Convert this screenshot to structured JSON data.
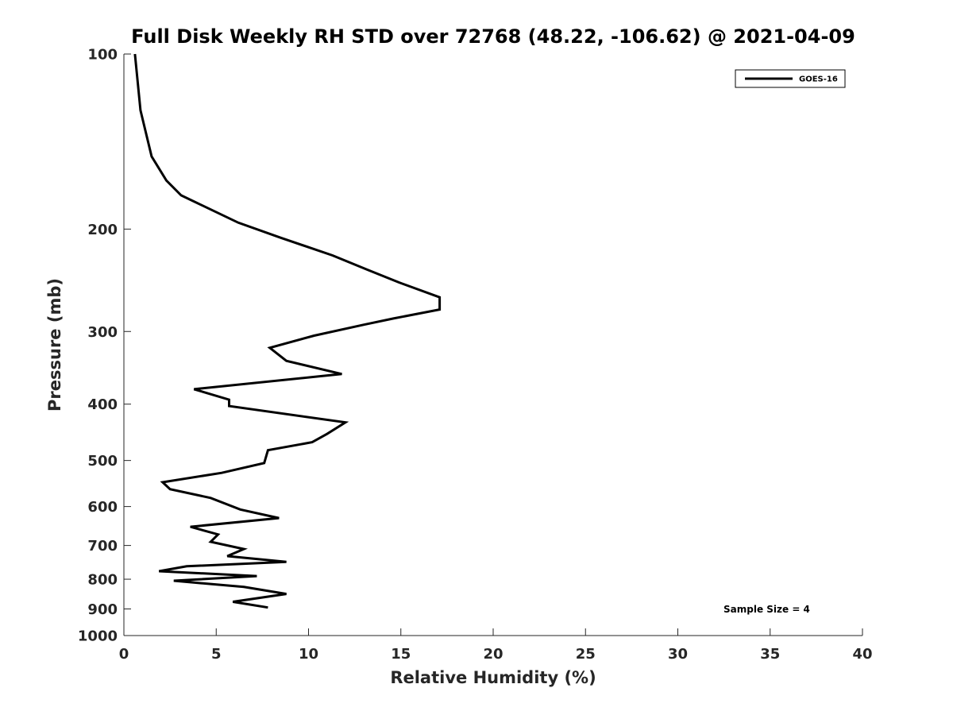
{
  "chart_data": {
    "type": "line",
    "title": "Full Disk Weekly RH STD over 72768 (48.22, -106.62) @ 2021-04-09",
    "xlabel": "Relative Humidity (%)",
    "ylabel": "Pressure (mb)",
    "xlim": [
      0,
      40
    ],
    "ylim": [
      100,
      1000
    ],
    "y_scale": "log",
    "y_reversed": true,
    "grid": false,
    "legend_position": "top-right",
    "x_ticks": [
      "0",
      "5",
      "10",
      "15",
      "20",
      "25",
      "30",
      "35",
      "40"
    ],
    "y_ticks": [
      "100",
      "200",
      "300",
      "400",
      "500",
      "600",
      "700",
      "800",
      "900",
      "1000"
    ],
    "series": [
      {
        "name": "GOES-16",
        "color": "#000000",
        "points": [
          [
            0.6,
            100
          ],
          [
            0.9,
            125
          ],
          [
            1.5,
            150
          ],
          [
            2.3,
            165
          ],
          [
            3.1,
            175
          ],
          [
            6.2,
            195
          ],
          [
            8.5,
            207
          ],
          [
            11.3,
            222
          ],
          [
            13.2,
            235
          ],
          [
            14.9,
            247
          ],
          [
            17.1,
            262
          ],
          [
            17.1,
            275
          ],
          [
            14.6,
            285
          ],
          [
            13.0,
            292
          ],
          [
            10.3,
            305
          ],
          [
            7.9,
            320
          ],
          [
            8.8,
            337
          ],
          [
            11.8,
            355
          ],
          [
            3.8,
            377
          ],
          [
            5.7,
            393
          ],
          [
            5.7,
            403
          ],
          [
            12.0,
            430
          ],
          [
            11.0,
            450
          ],
          [
            10.2,
            465
          ],
          [
            7.8,
            480
          ],
          [
            7.6,
            505
          ],
          [
            5.3,
            525
          ],
          [
            2.1,
            545
          ],
          [
            2.5,
            560
          ],
          [
            4.7,
            580
          ],
          [
            6.3,
            607
          ],
          [
            8.4,
            628
          ],
          [
            3.6,
            650
          ],
          [
            5.1,
            670
          ],
          [
            4.7,
            690
          ],
          [
            6.5,
            710
          ],
          [
            5.6,
            730
          ],
          [
            8.8,
            747
          ],
          [
            3.4,
            760
          ],
          [
            1.9,
            775
          ],
          [
            7.2,
            790
          ],
          [
            2.7,
            805
          ],
          [
            6.5,
            825
          ],
          [
            8.8,
            848
          ],
          [
            5.9,
            875
          ],
          [
            7.8,
            895
          ]
        ]
      }
    ],
    "annotation": "Sample Size = 4"
  }
}
